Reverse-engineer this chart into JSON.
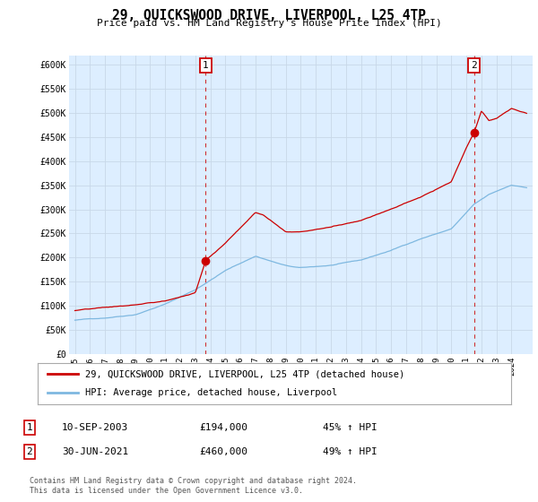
{
  "title": "29, QUICKSWOOD DRIVE, LIVERPOOL, L25 4TP",
  "subtitle": "Price paid vs. HM Land Registry's House Price Index (HPI)",
  "ylim": [
    0,
    620000
  ],
  "yticks": [
    0,
    50000,
    100000,
    150000,
    200000,
    250000,
    300000,
    350000,
    400000,
    450000,
    500000,
    550000,
    600000
  ],
  "ytick_labels": [
    "£0",
    "£50K",
    "£100K",
    "£150K",
    "£200K",
    "£250K",
    "£300K",
    "£350K",
    "£400K",
    "£450K",
    "£500K",
    "£550K",
    "£600K"
  ],
  "hpi_color": "#7eb8e0",
  "price_color": "#cc0000",
  "vline_color": "#cc0000",
  "plot_bg_color": "#ddeeff",
  "marker1_date": 2003.69,
  "marker1_price": 194000,
  "marker1_label": "10-SEP-2003",
  "marker1_value": "£194,000",
  "marker1_pct": "45% ↑ HPI",
  "marker2_date": 2021.5,
  "marker2_price": 460000,
  "marker2_label": "30-JUN-2021",
  "marker2_value": "£460,000",
  "marker2_pct": "49% ↑ HPI",
  "legend_line1": "29, QUICKSWOOD DRIVE, LIVERPOOL, L25 4TP (detached house)",
  "legend_line2": "HPI: Average price, detached house, Liverpool",
  "footer1": "Contains HM Land Registry data © Crown copyright and database right 2024.",
  "footer2": "This data is licensed under the Open Government Licence v3.0.",
  "background_color": "#ffffff",
  "grid_color": "#c8d8e8"
}
